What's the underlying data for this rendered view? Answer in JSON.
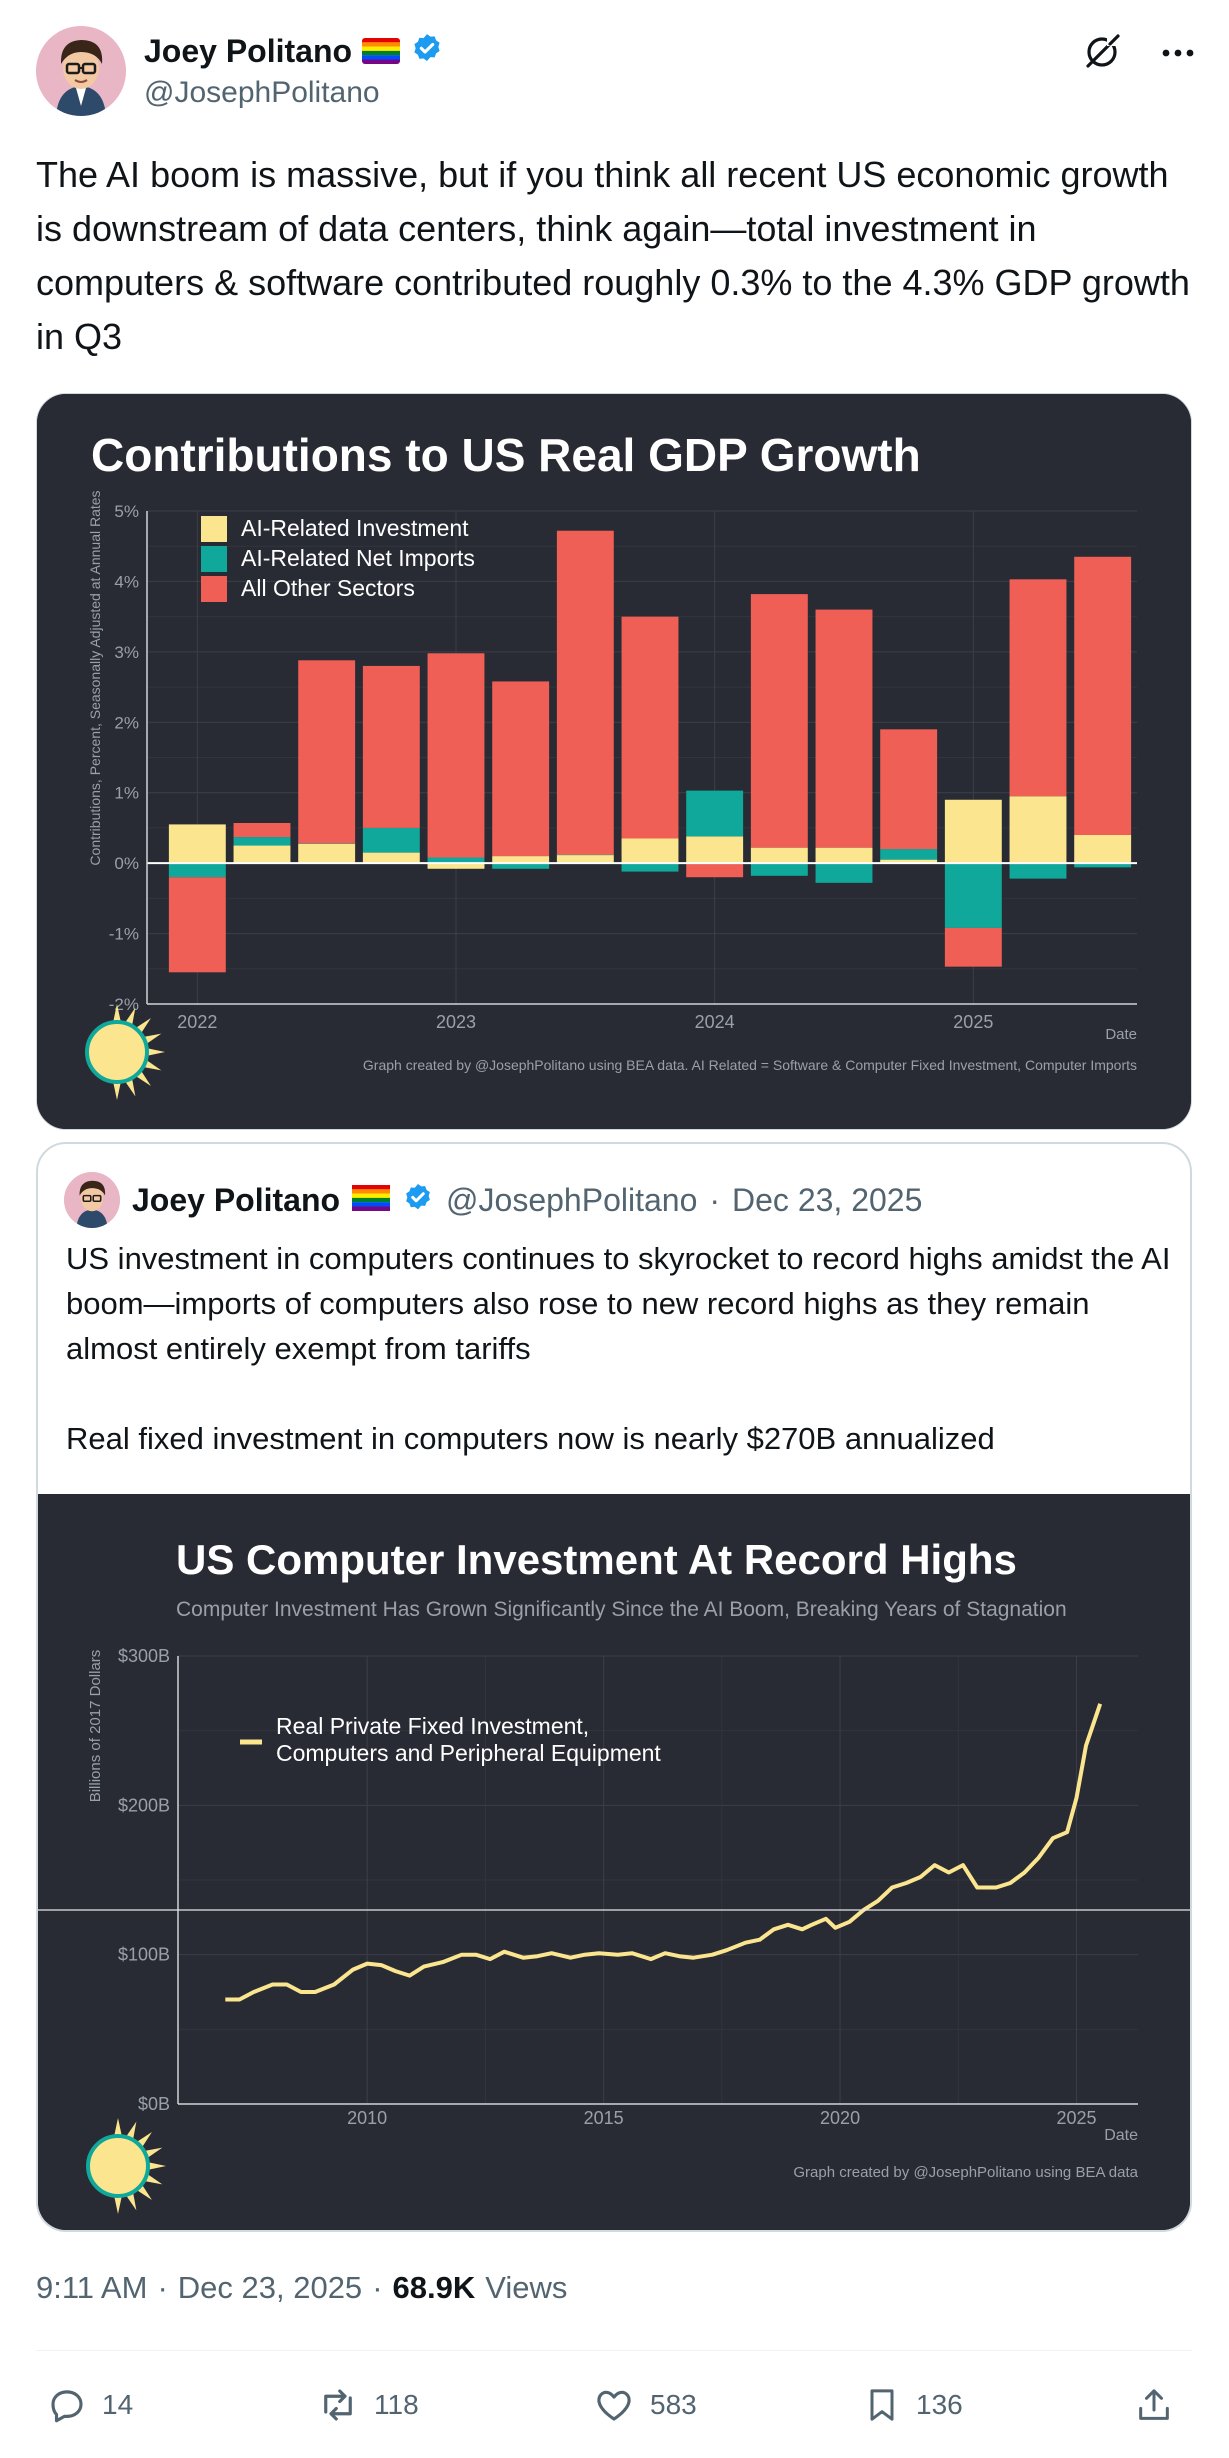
{
  "author": {
    "name": "Joey Politano",
    "handle": "@JosephPolitano",
    "flag_icon": "rainbow-flag-icon",
    "verified_icon": "verified-badge-icon"
  },
  "tweet": {
    "text": "The AI boom is massive, but if you think all recent US economic growth is downstream of data centers, think again—total investment in computers & software contributed roughly 0.3% to the 4.3% GDP growth in Q3"
  },
  "chart1": {
    "title": "Contributions to US Real GDP Growth",
    "ylabel": "Contributions, Percent, Seasonally Adjusted at Annual Rates",
    "xlabel": "Date",
    "caption": "Graph created by @JosephPolitano using BEA data. AI Related = Software & Computer Fixed Investment, Computer Imports",
    "yticks": [
      "5%",
      "4%",
      "3%",
      "2%",
      "1%",
      "0%",
      "-1%",
      "-2%"
    ],
    "xticks": [
      "2022",
      "2023",
      "2024",
      "2025"
    ],
    "colors": {
      "ai_investment": "#fbe58f",
      "ai_net_imports": "#10a89a",
      "other": "#ef5f56",
      "bg": "#282b33"
    }
  },
  "chart_data": [
    {
      "type": "bar",
      "stacked": true,
      "title": "Contributions to US Real GDP Growth",
      "xlabel": "Date",
      "ylabel": "Contributions, Percent, Seasonally Adjusted at Annual Rates",
      "ylim": [
        -2,
        5
      ],
      "categories": [
        "2022 Q1",
        "2022 Q2",
        "2022 Q3",
        "2022 Q4",
        "2023 Q1",
        "2023 Q2",
        "2023 Q3",
        "2023 Q4",
        "2024 Q1",
        "2024 Q2",
        "2024 Q3",
        "2024 Q4",
        "2025 Q1",
        "2025 Q2",
        "2025 Q3"
      ],
      "series": [
        {
          "name": "AI-Related Investment",
          "values": [
            0.55,
            0.25,
            0.28,
            0.15,
            -0.08,
            0.1,
            0.12,
            0.35,
            0.38,
            0.22,
            0.22,
            0.05,
            0.9,
            0.95,
            0.4
          ]
        },
        {
          "name": "AI-Related Net Imports",
          "values": [
            -0.2,
            0.12,
            0.0,
            0.35,
            0.08,
            -0.08,
            0.0,
            -0.12,
            0.65,
            -0.18,
            -0.28,
            0.15,
            -0.92,
            -0.22,
            -0.06
          ]
        },
        {
          "name": "All Other Sectors",
          "values": [
            -1.35,
            0.2,
            2.6,
            2.3,
            2.9,
            2.48,
            4.6,
            3.15,
            -0.2,
            3.6,
            3.38,
            1.7,
            -0.55,
            3.08,
            3.95
          ]
        }
      ],
      "legend": "top-left"
    },
    {
      "type": "line",
      "title": "US Computer Investment At Record Highs",
      "subtitle": "Computer Investment Has Grown Significantly Since the AI Boom, Breaking Years of Stagnation",
      "xlabel": "Date",
      "ylabel": "Billions of 2017 Dollars",
      "ylim": [
        0,
        300
      ],
      "xlim": [
        2006,
        2026.3
      ],
      "series": [
        {
          "name": "Real Private Fixed Investment, Computers and Peripheral Equipment",
          "x": [
            2007.0,
            2007.3,
            2007.6,
            2008.0,
            2008.3,
            2008.6,
            2008.9,
            2009.3,
            2009.7,
            2010.0,
            2010.3,
            2010.6,
            2010.9,
            2011.2,
            2011.6,
            2012.0,
            2012.3,
            2012.6,
            2012.9,
            2013.3,
            2013.6,
            2013.9,
            2014.3,
            2014.6,
            2014.9,
            2015.3,
            2015.6,
            2016.0,
            2016.3,
            2016.6,
            2016.9,
            2017.3,
            2017.6,
            2018.0,
            2018.3,
            2018.6,
            2018.9,
            2019.2,
            2019.4,
            2019.7,
            2019.9,
            2020.2,
            2020.5,
            2020.8,
            2021.1,
            2021.4,
            2021.7,
            2022.0,
            2022.3,
            2022.6,
            2022.9,
            2023.3,
            2023.6,
            2023.9,
            2024.2,
            2024.5,
            2024.8,
            2025.0,
            2025.2,
            2025.5
          ],
          "y": [
            70,
            70,
            75,
            80,
            80,
            75,
            75,
            80,
            90,
            94,
            93,
            89,
            86,
            92,
            95,
            100,
            100,
            97,
            102,
            98,
            99,
            101,
            98,
            100,
            101,
            100,
            101,
            97,
            101,
            99,
            98,
            100,
            103,
            108,
            110,
            117,
            120,
            117,
            120,
            124,
            118,
            122,
            130,
            136,
            145,
            148,
            152,
            160,
            155,
            160,
            145,
            145,
            148,
            155,
            165,
            178,
            182,
            205,
            240,
            268
          ]
        }
      ],
      "legend": "top-left"
    }
  ],
  "chart2": {
    "title": "US Computer Investment At Record Highs",
    "subtitle": "Computer Investment Has Grown Significantly Since the AI Boom, Breaking Years of Stagnation",
    "ylabel": "Billions of 2017 Dollars",
    "xlabel": "Date",
    "legend_line1": "Real Private Fixed Investment,",
    "legend_line2": "Computers and Peripheral Equipment",
    "caption": "Graph created by @JosephPolitano using BEA data",
    "yticks": [
      "$300B",
      "$200B",
      "$100B",
      "$0B"
    ],
    "xticks": [
      "2010",
      "2015",
      "2020",
      "2025"
    ],
    "line_color": "#fbe58f"
  },
  "quote": {
    "name": "Joey Politano",
    "handle": "@JosephPolitano",
    "sep": "·",
    "date": "Dec 23, 2025",
    "text": "US investment in computers continues to skyrocket to record highs amidst the AI boom—imports of computers also rose to new record highs as they remain almost entirely exempt from tariffs\n\nReal fixed investment in computers now is nearly $270B annualized"
  },
  "meta": {
    "time": "9:11 AM",
    "sep1": "·",
    "date": "Dec 23, 2025",
    "sep2": "·",
    "views_count": "68.9K",
    "views_label": "Views"
  },
  "actions": {
    "replies": "14",
    "reposts": "118",
    "likes": "583",
    "bookmarks": "136"
  }
}
